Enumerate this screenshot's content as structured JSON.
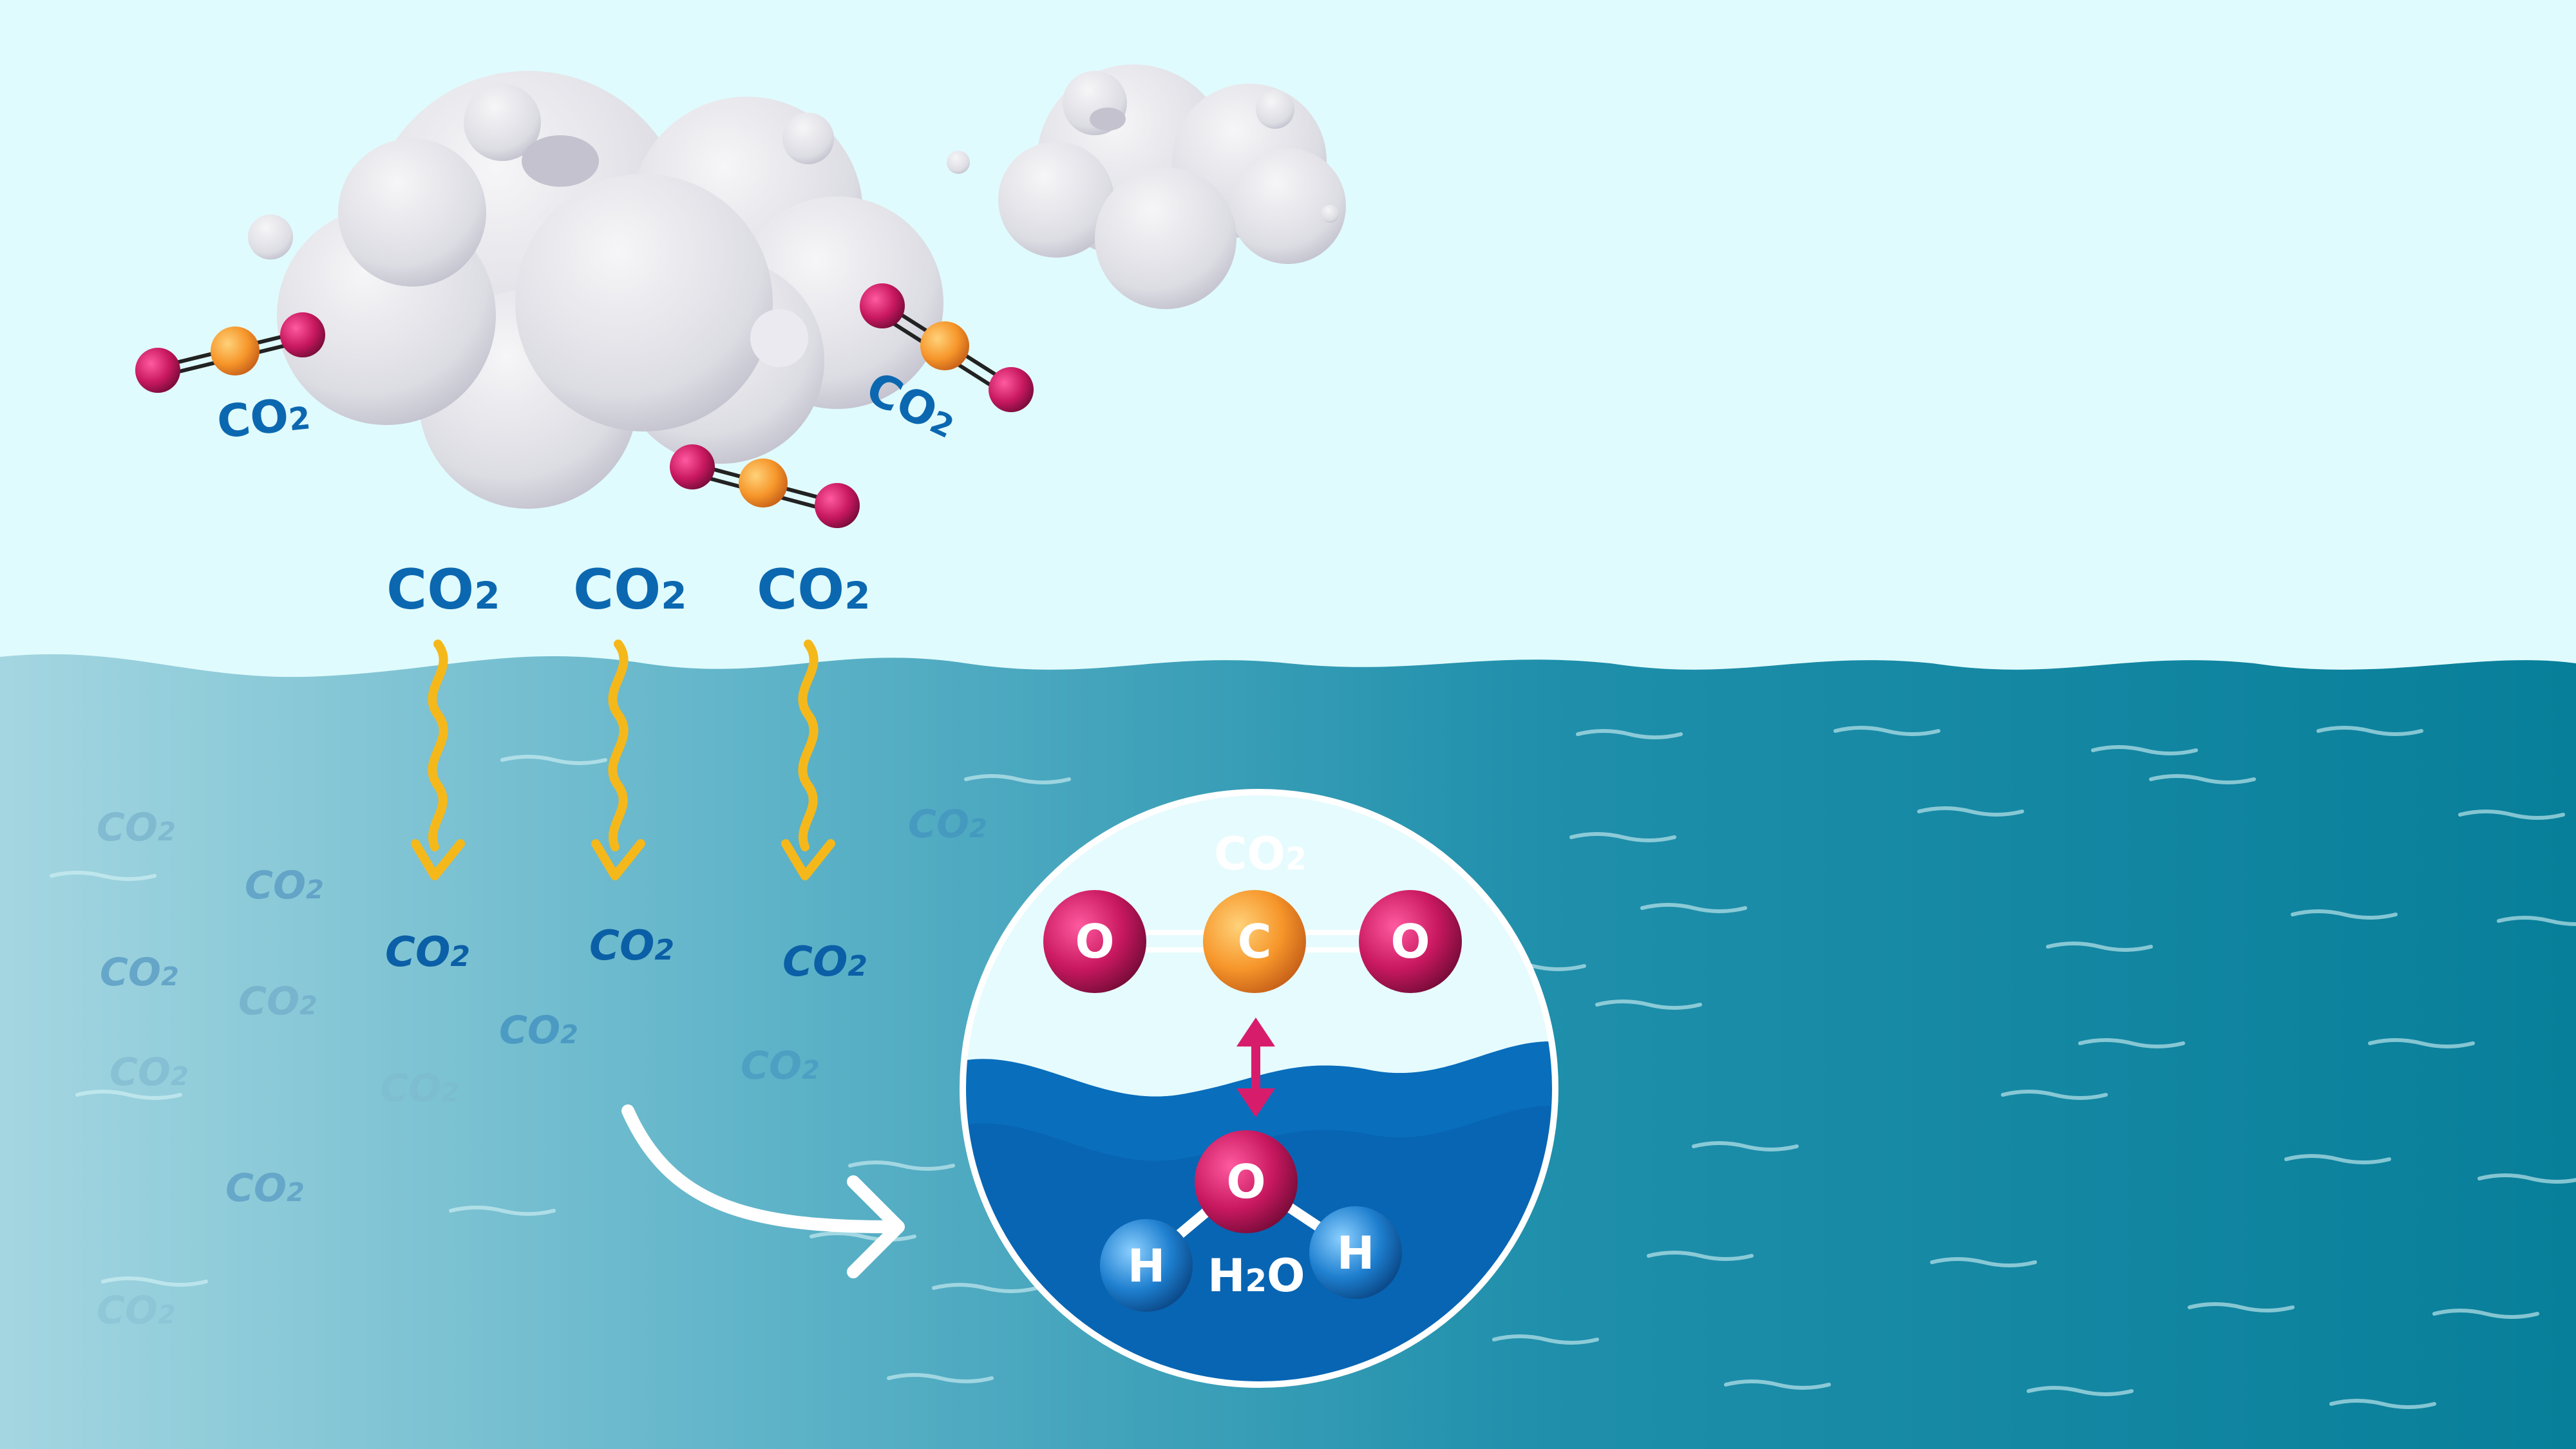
{
  "diagram": {
    "co2_label": "CO",
    "co2_subscript": "2",
    "h2o_label_h": "H",
    "h2o_label_sub": "2",
    "h2o_label_o": "O",
    "atom_c": "C",
    "atom_o": "O",
    "atom_h": "H"
  },
  "colors": {
    "sky": "#e0fbfd",
    "ocean_light": "#9fd3df",
    "ocean_mid": "#3c9fb8",
    "ocean_deep": "#087f9a",
    "inset_water": "#0865b3",
    "inset_water_surface": "#0a72c0",
    "label_blue": "#0b68b0",
    "oxygen": "#c8185f",
    "carbon": "#f6962a",
    "hydrogen": "#1e7fcf",
    "arrow_yellow": "#f5b81b",
    "double_arrow": "#d81c6c",
    "cloud": "#dcdce4"
  },
  "icons": [
    "cloud-icon",
    "co2-molecule-icon",
    "wavy-arrow-icon",
    "curved-arrow-icon",
    "magnifier-circle-icon",
    "water-molecule-icon"
  ]
}
